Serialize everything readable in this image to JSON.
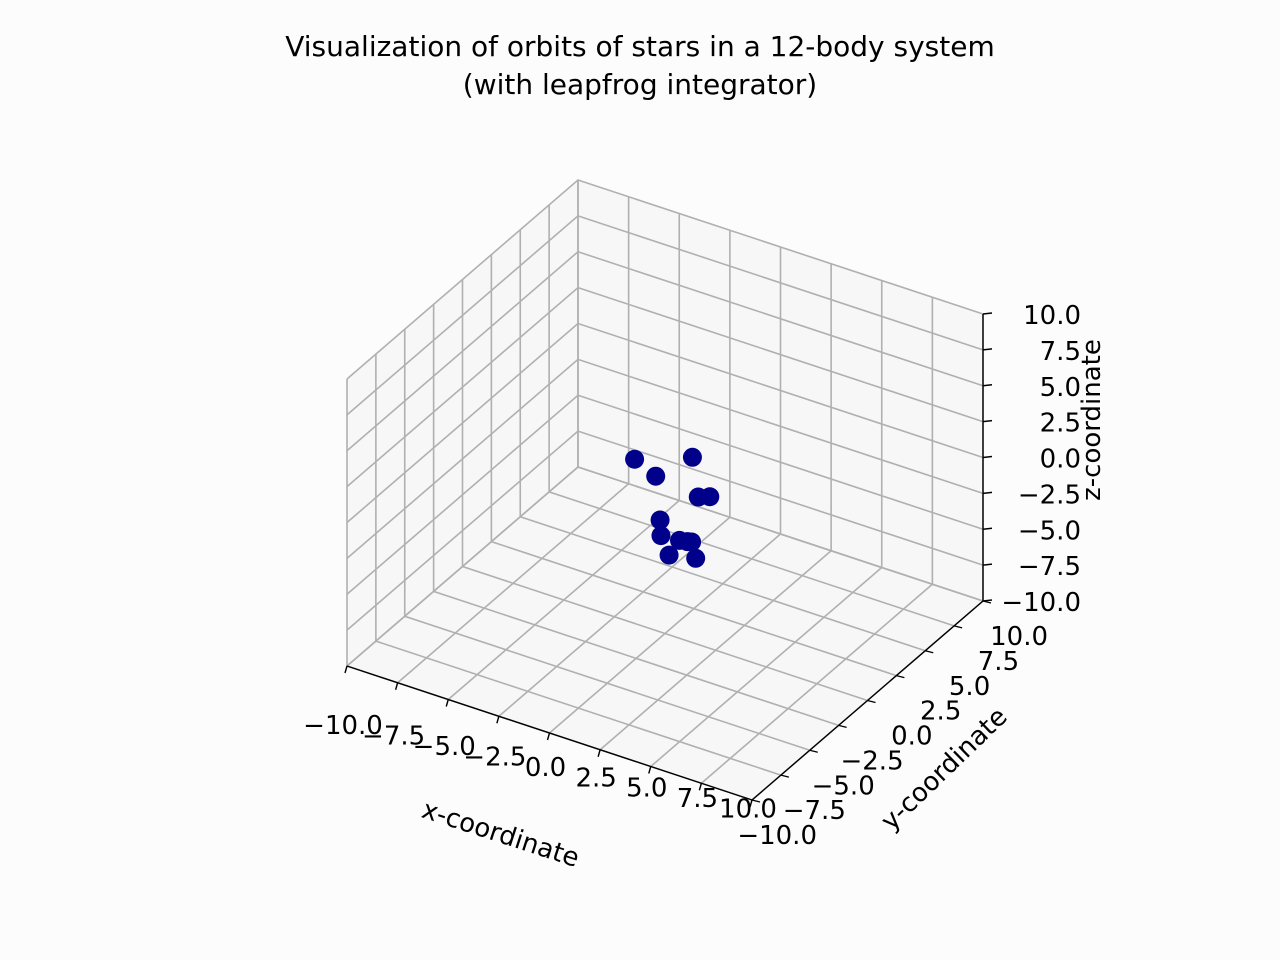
{
  "chart_data": {
    "type": "scatter",
    "projection": "3d",
    "title": "Visualization of orbits of stars in a 12-body system",
    "subtitle": "(with leapfrog integrator)",
    "xlabel": "x-coordinate",
    "ylabel": "y-coordinate",
    "zlabel": "z-coordinate",
    "xlim": [
      -10,
      10
    ],
    "ylim": [
      -10,
      10
    ],
    "zlim": [
      -10,
      10
    ],
    "ticks": [
      -10,
      -7.5,
      -5,
      -2.5,
      0,
      2.5,
      5,
      7.5,
      10
    ],
    "x_tick_labels": [
      "−10.0",
      "−7.5",
      "−5.0",
      "−2.5",
      "0.0",
      "2.5",
      "5.0",
      "7.5",
      "10.0"
    ],
    "y_tick_labels": [
      "−10.0",
      "−7.5",
      "−5.0",
      "−2.5",
      "0.0",
      "2.5",
      "5.0",
      "7.5",
      "10.0"
    ],
    "z_tick_labels": [
      "−10.0",
      "−7.5",
      "−5.0",
      "−2.5",
      "0.0",
      "2.5",
      "5.0",
      "7.5",
      "10.0"
    ],
    "grid": true,
    "marker_color": "#00008b",
    "grid_color": "#b0b0b0",
    "pane_color": "#f2f2f2",
    "points": [
      {
        "x": -1.2,
        "y": 1.3,
        "z": -0.5
      },
      {
        "x": 0.1,
        "y": 2.2,
        "z": 0.8
      },
      {
        "x": 1.3,
        "y": 0.6,
        "z": -0.3
      },
      {
        "x": 1.7,
        "y": 0.9,
        "z": -0.3
      },
      {
        "x": -0.3,
        "y": 0.1,
        "z": -2.3
      },
      {
        "x": 0.2,
        "y": -0.7,
        "z": -2.6
      },
      {
        "x": 1.0,
        "y": -0.5,
        "z": -2.7
      },
      {
        "x": 1.4,
        "y": -0.5,
        "z": -2.6
      },
      {
        "x": 2.2,
        "y": -1.2,
        "z": -2.9
      },
      {
        "x": 1.0,
        "y": -1.4,
        "z": -3.1
      },
      {
        "x": -2.3,
        "y": 1.4,
        "z": 0.1
      },
      {
        "x": 1.2,
        "y": 0.2,
        "z": -3.2
      }
    ]
  }
}
